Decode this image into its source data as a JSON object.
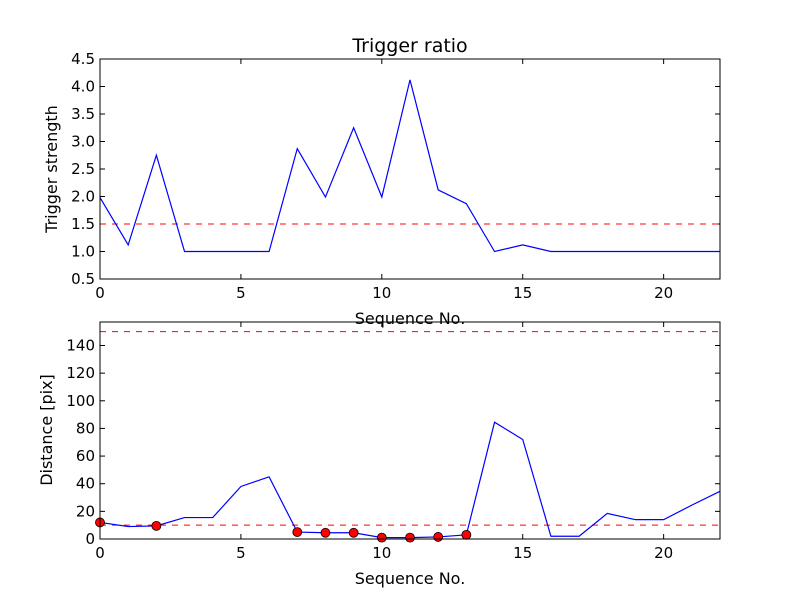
{
  "chart_data": [
    {
      "type": "line",
      "title": "Trigger ratio",
      "xlabel": "Sequence No.",
      "ylabel": "Trigger strength",
      "xlim": [
        0,
        22
      ],
      "ylim": [
        0.5,
        4.5
      ],
      "xticks": [
        "0",
        "5",
        "10",
        "15",
        "20"
      ],
      "yticks": [
        "0.5",
        "1.0",
        "1.5",
        "2.0",
        "2.5",
        "3.0",
        "3.5",
        "4.0",
        "4.5"
      ],
      "grid": false,
      "series": [
        {
          "color": "#0000ff",
          "style": "solid",
          "x": [
            0,
            1,
            2,
            3,
            4,
            5,
            6,
            7,
            8,
            9,
            10,
            11,
            12,
            13,
            14,
            15,
            16,
            17,
            18,
            19,
            20,
            21,
            22
          ],
          "values": [
            1.98,
            1.12,
            2.75,
            1.0,
            1.0,
            1.0,
            1.0,
            2.87,
            1.99,
            3.25,
            1.99,
            4.12,
            2.12,
            1.87,
            1.0,
            1.12,
            1.0,
            1.0,
            1.0,
            1.0,
            1.0,
            1.0,
            1.0
          ]
        }
      ],
      "hlines": [
        {
          "y": 1.5,
          "color": "#ff0000",
          "style": "dashed"
        }
      ]
    },
    {
      "type": "line",
      "title": "",
      "xlabel": "Sequence No.",
      "ylabel": "Distance [pix]",
      "xlim": [
        0,
        22
      ],
      "ylim": [
        0,
        157
      ],
      "xticks": [
        "0",
        "5",
        "10",
        "15",
        "20"
      ],
      "yticks": [
        "0",
        "20",
        "40",
        "60",
        "80",
        "100",
        "120",
        "140"
      ],
      "grid": false,
      "series": [
        {
          "color": "#0000ff",
          "style": "solid",
          "x": [
            0,
            1,
            2,
            3,
            4,
            5,
            6,
            7,
            8,
            9,
            10,
            11,
            12,
            13,
            14,
            15,
            16,
            17,
            18,
            19,
            20,
            21,
            22
          ],
          "values": [
            12,
            9,
            9.5,
            15.5,
            15.5,
            38,
            45,
            5,
            4.5,
            4.5,
            1,
            1,
            1.5,
            3,
            84.5,
            72,
            2,
            2,
            18.5,
            14,
            14,
            24.5,
            34.5
          ]
        }
      ],
      "markers": {
        "color": "#ff0000",
        "x": [
          0,
          2,
          7,
          8,
          9,
          10,
          11,
          12,
          13
        ],
        "values": [
          12,
          9.5,
          5,
          4.5,
          4.5,
          1,
          1,
          1.5,
          3
        ]
      },
      "hlines": [
        {
          "y": 150,
          "color": "#ff0000",
          "style": "dashed"
        },
        {
          "y": 10,
          "color": "#ff0000",
          "style": "dashed"
        }
      ]
    }
  ]
}
